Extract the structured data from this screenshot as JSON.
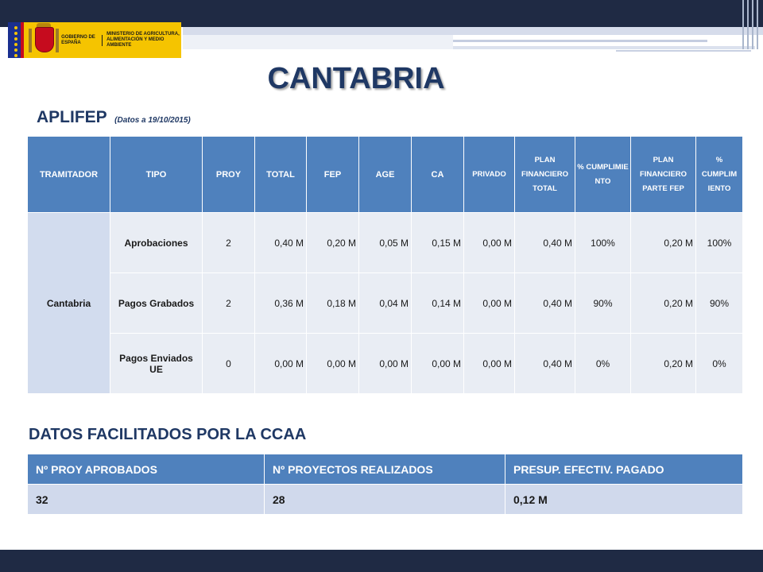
{
  "logo": {
    "line1": "GOBIERNO DE ESPAÑA",
    "line2": "MINISTERIO DE AGRICULTURA, ALIMENTACIÓN Y MEDIO AMBIENTE"
  },
  "title": "CANTABRIA",
  "subtitle": {
    "text": "APLIFEP",
    "date": "(Datos a 19/10/2015)"
  },
  "main_table": {
    "headers": [
      "TRAMITADOR",
      "TIPO",
      "PROY",
      "TOTAL",
      "FEP",
      "AGE",
      "CA",
      "PRIVADO",
      "PLAN FINANCIERO TOTAL",
      "% CUMPLIMIE NTO",
      "PLAN FINANCIERO PARTE FEP",
      "% CUMPLIM IENTO"
    ],
    "tramitador": "Cantabria",
    "rows": [
      [
        "Aprobaciones",
        "2",
        "0,40 M",
        "0,20 M",
        "0,05 M",
        "0,15 M",
        "0,00 M",
        "0,40 M",
        "100%",
        "0,20 M",
        "100%"
      ],
      [
        "Pagos Grabados",
        "2",
        "0,36 M",
        "0,18 M",
        "0,04 M",
        "0,14 M",
        "0,00 M",
        "0,40 M",
        "90%",
        "0,20 M",
        "90%"
      ],
      [
        "Pagos Enviados UE",
        "0",
        "0,00 M",
        "0,00 M",
        "0,00 M",
        "0,00 M",
        "0,00 M",
        "0,40 M",
        "0%",
        "0,20 M",
        "0%"
      ]
    ]
  },
  "section2": {
    "title": "DATOS FACILITADOS POR LA  CCAA",
    "headers": [
      "Nº PROY APROBADOS",
      "Nº PROYECTOS REALIZADOS",
      "PRESUP. EFECTIV. PAGADO"
    ],
    "values": [
      "32",
      "28",
      "0,12 M"
    ]
  },
  "colors": {
    "header_blue": "#4f81bd",
    "title_navy": "#1f3864",
    "band_navy": "#1f2a44",
    "logo_yellow": "#f5c400"
  }
}
